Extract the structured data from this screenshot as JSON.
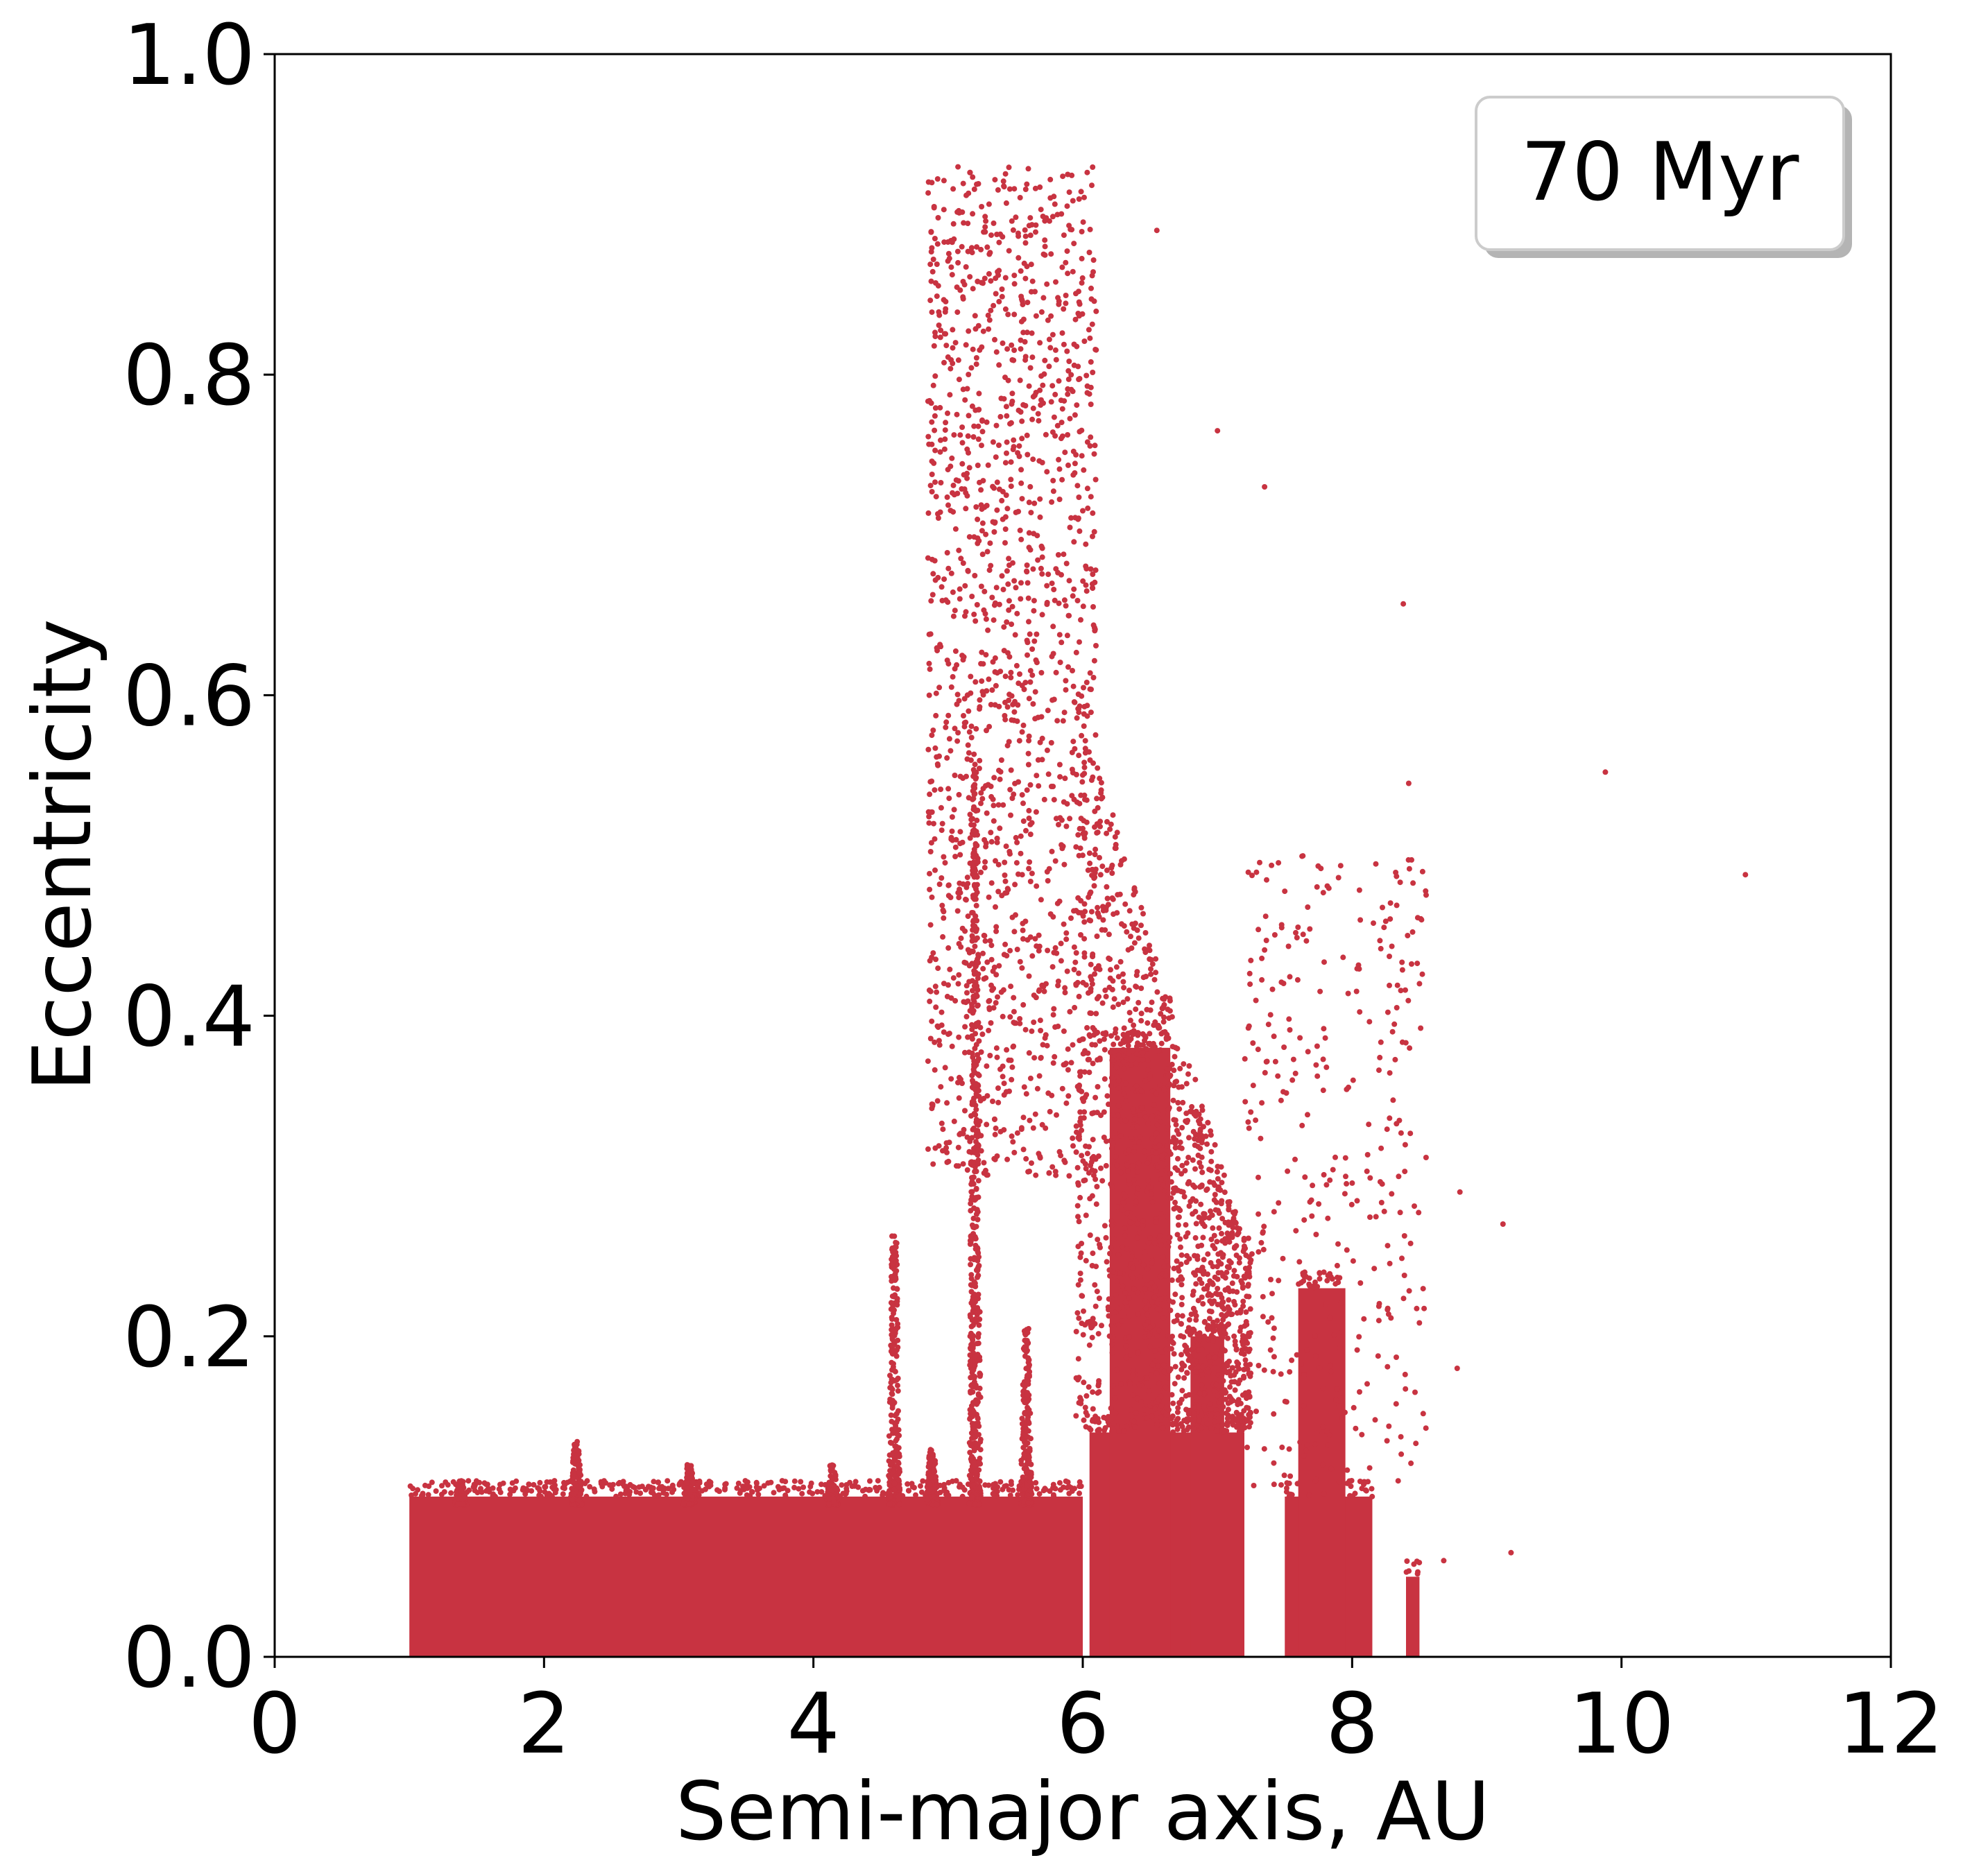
{
  "chart_data": {
    "type": "scatter",
    "title": "",
    "xlabel": "Semi-major axis, AU",
    "ylabel": "Eccentricity",
    "xlim": [
      0,
      12
    ],
    "ylim": [
      0,
      1.0
    ],
    "xticks": [
      "0",
      "2",
      "4",
      "6",
      "8",
      "10",
      "12"
    ],
    "yticks": [
      "0.0",
      "0.2",
      "0.4",
      "0.6",
      "0.8",
      "1.0"
    ],
    "legend": {
      "label": "70 Myr",
      "placement": "top-right"
    },
    "marker_color": "#c83341",
    "grid": false,
    "dense_regions": [
      {
        "x": [
          1.0,
          6.0
        ],
        "e": [
          0.0,
          0.1
        ]
      },
      {
        "x": [
          6.05,
          7.2
        ],
        "e": [
          0.0,
          0.14
        ]
      },
      {
        "x": [
          6.2,
          6.65
        ],
        "e": [
          0.0,
          0.38
        ]
      },
      {
        "x": [
          6.8,
          7.05
        ],
        "e": [
          0.0,
          0.2
        ]
      },
      {
        "x": [
          7.5,
          8.15
        ],
        "e": [
          0.0,
          0.1
        ]
      },
      {
        "x": [
          7.6,
          7.95
        ],
        "e": [
          0.0,
          0.23
        ]
      },
      {
        "x": [
          8.4,
          8.5
        ],
        "e": [
          0.0,
          0.05
        ]
      }
    ],
    "resonance_spikes": [
      {
        "x": 1.38,
        "e_max": 0.11
      },
      {
        "x": 2.24,
        "e_max": 0.135
      },
      {
        "x": 3.08,
        "e_max": 0.12
      },
      {
        "x": 4.14,
        "e_max": 0.12
      },
      {
        "x": 4.6,
        "e_max": 0.265
      },
      {
        "x": 4.88,
        "e_max": 0.13
      },
      {
        "x": 5.2,
        "e_max": 0.56
      },
      {
        "x": 5.58,
        "e_max": 0.205
      }
    ],
    "scattered_population": {
      "x_range": [
        4.85,
        6.1
      ],
      "e_range": [
        0.3,
        0.93
      ]
    },
    "outliers": [
      {
        "x": 6.55,
        "y": 0.89
      },
      {
        "x": 7.0,
        "y": 0.765
      },
      {
        "x": 7.35,
        "y": 0.73
      },
      {
        "x": 8.38,
        "y": 0.657
      },
      {
        "x": 8.42,
        "y": 0.545
      },
      {
        "x": 9.88,
        "y": 0.552
      },
      {
        "x": 10.92,
        "y": 0.488
      },
      {
        "x": 8.5,
        "y": 0.42
      },
      {
        "x": 8.3,
        "y": 0.39
      },
      {
        "x": 8.8,
        "y": 0.29
      },
      {
        "x": 9.12,
        "y": 0.27
      },
      {
        "x": 8.78,
        "y": 0.18
      },
      {
        "x": 9.18,
        "y": 0.065
      },
      {
        "x": 8.68,
        "y": 0.06
      }
    ]
  }
}
